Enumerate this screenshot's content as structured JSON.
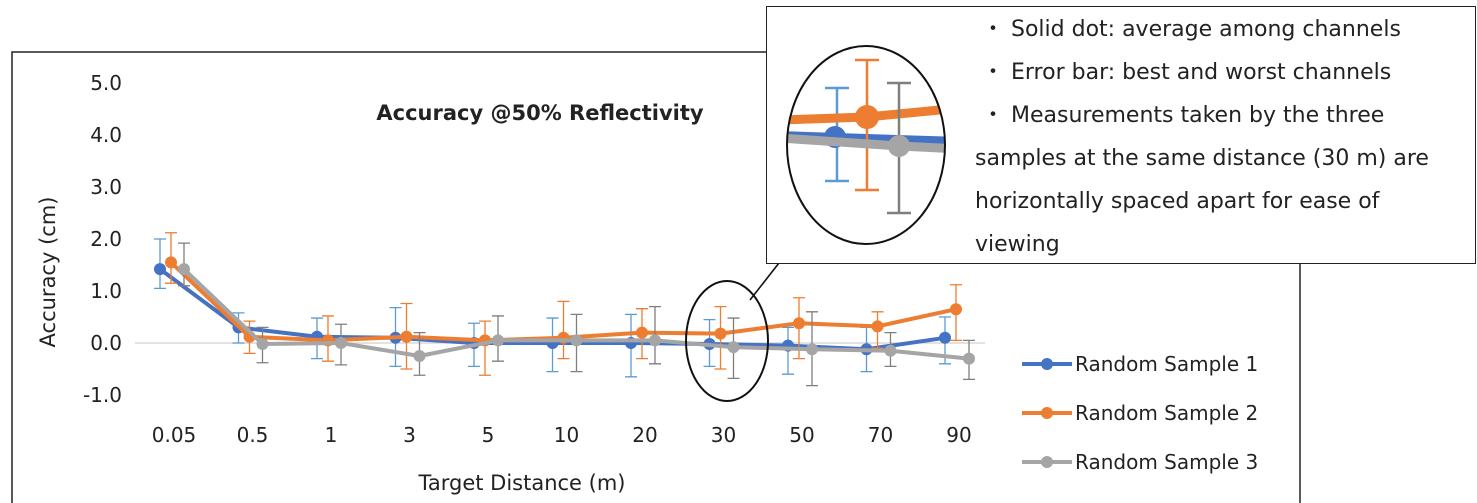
{
  "chart_data": {
    "type": "line",
    "title": "Accuracy @50% Reflectivity",
    "xlabel": "Target Distance (m)",
    "ylabel": "Accuracy (cm)",
    "ylim": [
      -1.0,
      5.0
    ],
    "yticks": [
      "5.0",
      "4.0",
      "3.0",
      "2.0",
      "1.0",
      "0.0",
      "-1.0"
    ],
    "categories": [
      "0.05",
      "0.5",
      "1",
      "3",
      "5",
      "10",
      "20",
      "30",
      "50",
      "70",
      "90"
    ],
    "grid": false,
    "legend_position": "right",
    "series": [
      {
        "name": "Random Sample 1",
        "color": "#4472C4",
        "values": [
          1.42,
          0.3,
          0.12,
          0.1,
          0.0,
          0.0,
          0.0,
          -0.02,
          -0.05,
          -0.12,
          0.1
        ],
        "err_low": [
          1.05,
          0.0,
          -0.3,
          -0.45,
          -0.45,
          -0.55,
          -0.65,
          -0.45,
          -0.6,
          -0.55,
          -0.4
        ],
        "err_high": [
          2.0,
          0.58,
          0.48,
          0.68,
          0.38,
          0.48,
          0.55,
          0.45,
          0.3,
          0.3,
          0.5
        ]
      },
      {
        "name": "Random Sample 2",
        "color": "#ED7D31",
        "values": [
          1.55,
          0.12,
          0.05,
          0.12,
          0.05,
          0.1,
          0.2,
          0.18,
          0.38,
          0.32,
          0.65
        ],
        "err_low": [
          1.15,
          -0.2,
          -0.35,
          -0.5,
          -0.62,
          -0.3,
          -0.3,
          -0.5,
          -0.3,
          -0.1,
          0.05
        ],
        "err_high": [
          2.12,
          0.42,
          0.52,
          0.76,
          0.42,
          0.8,
          0.66,
          0.7,
          0.87,
          0.6,
          1.12
        ]
      },
      {
        "name": "Random Sample 3",
        "color": "#A5A5A5",
        "values": [
          1.42,
          -0.02,
          0.0,
          -0.25,
          0.05,
          0.05,
          0.05,
          -0.08,
          -0.12,
          -0.15,
          -0.3
        ],
        "err_low": [
          1.1,
          -0.38,
          -0.42,
          -0.62,
          -0.35,
          -0.55,
          -0.4,
          -0.68,
          -0.82,
          -0.45,
          -0.7
        ],
        "err_high": [
          1.92,
          0.3,
          0.36,
          0.2,
          0.52,
          0.55,
          0.7,
          0.48,
          0.6,
          0.2,
          0.05
        ]
      }
    ]
  },
  "notes": {
    "bullet": "・",
    "line1": "Solid dot: average among channels",
    "line2": "Error bar: best and worst channels",
    "line3": "Measurements taken by the three",
    "line4": "samples at the same distance (30 m) are",
    "line5": "horizontally spaced apart for ease of",
    "line6": "viewing"
  }
}
